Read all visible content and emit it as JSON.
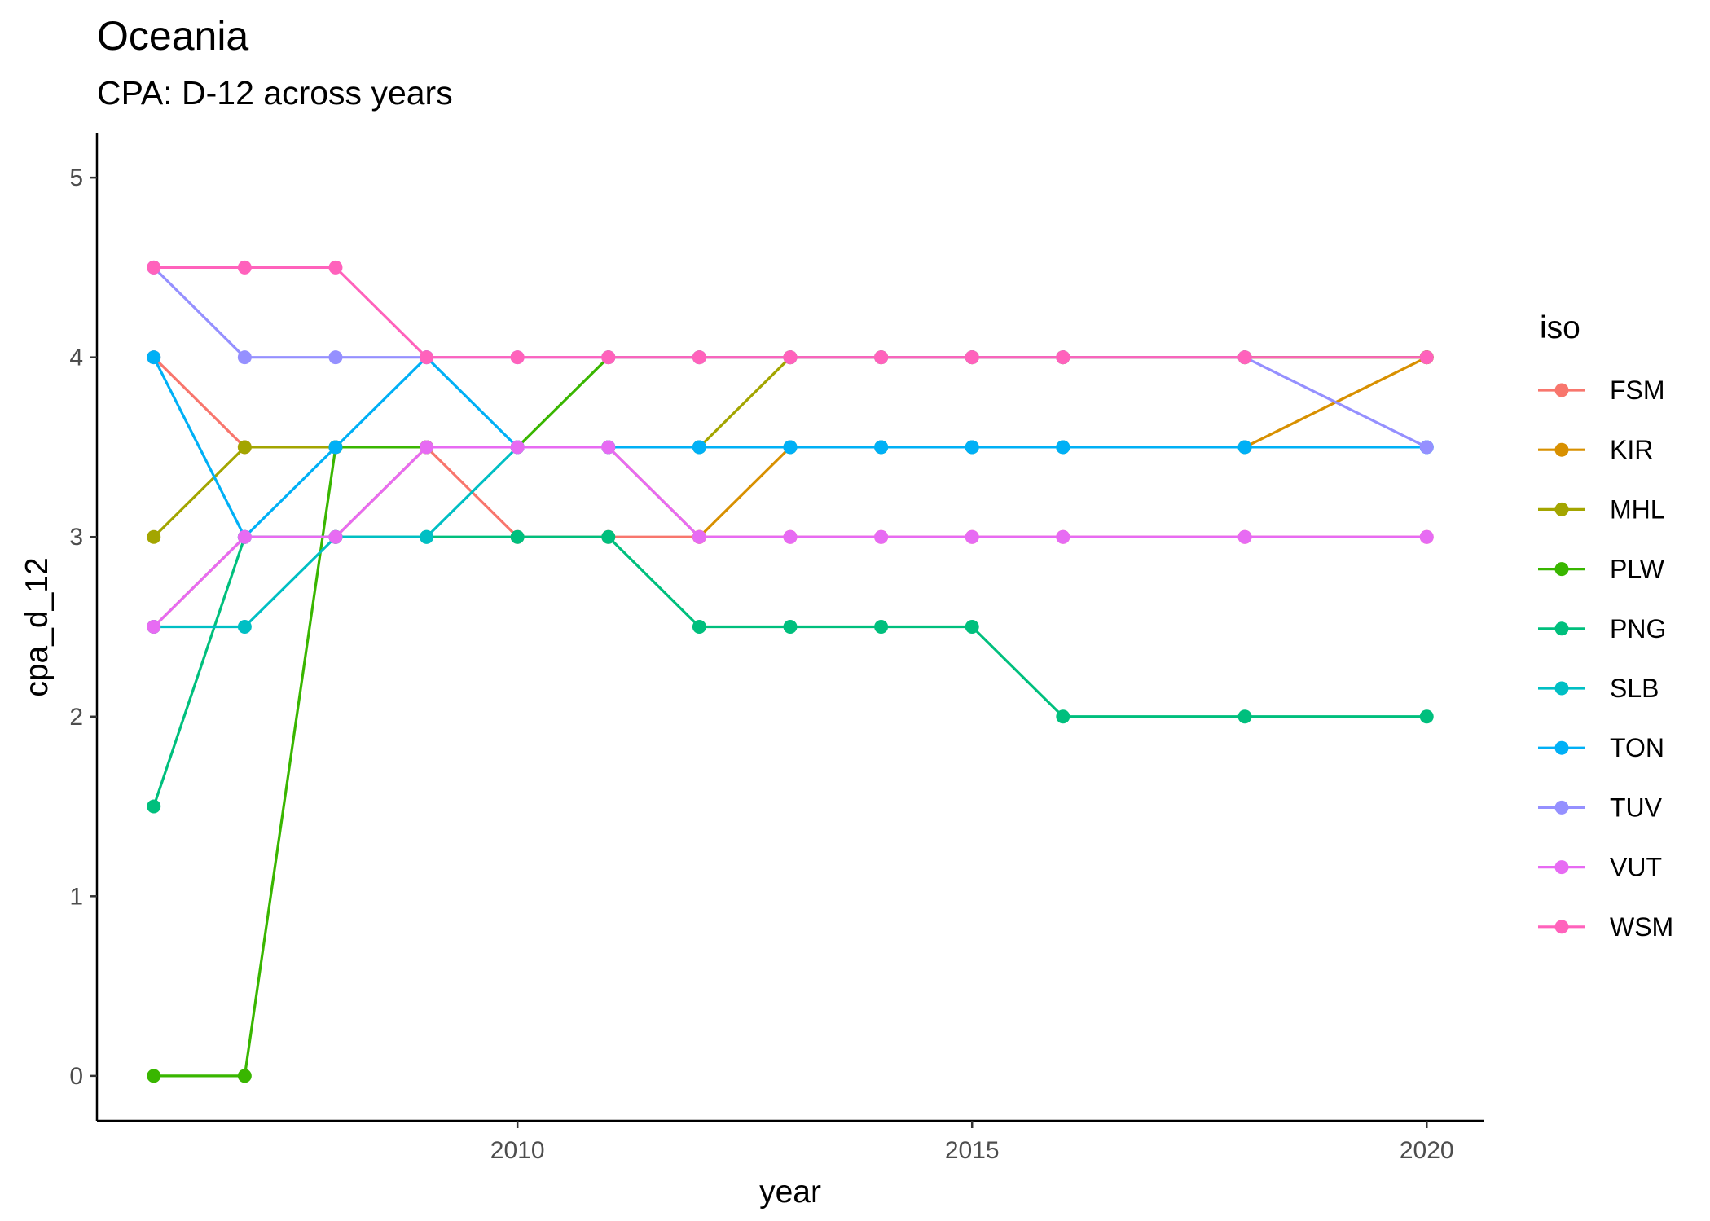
{
  "chart_data": {
    "type": "line",
    "title": "Oceania",
    "subtitle": "CPA: D-12 across years",
    "xlabel": "year",
    "ylabel": "cpa_d_12",
    "xlim": [
      2005.375,
      2020.625
    ],
    "ylim": [
      -0.25,
      5.25
    ],
    "x_ticks": [
      2010,
      2015,
      2020
    ],
    "y_ticks": [
      0,
      1,
      2,
      3,
      4,
      5
    ],
    "grid": false,
    "legend_title": "iso",
    "legend_position": "right",
    "x": [
      2006,
      2007,
      2008,
      2009,
      2010,
      2011,
      2012,
      2013,
      2014,
      2015,
      2016,
      2018,
      2020
    ],
    "series": [
      {
        "name": "FSM",
        "color": "#F8766D",
        "values": [
          4,
          3.5,
          3.5,
          3.5,
          3,
          3,
          3,
          3,
          3,
          3,
          3,
          3,
          3
        ]
      },
      {
        "name": "KIR",
        "color": "#D89000",
        "values": [
          2.5,
          3,
          3,
          3.5,
          3.5,
          3.5,
          3,
          3.5,
          3.5,
          3.5,
          3.5,
          3.5,
          4
        ]
      },
      {
        "name": "MHL",
        "color": "#A3A500",
        "values": [
          3,
          3.5,
          3.5,
          3.5,
          3.5,
          3.5,
          3.5,
          4,
          4,
          4,
          4,
          4,
          4
        ]
      },
      {
        "name": "PLW",
        "color": "#39B600",
        "values": [
          0,
          0,
          3.5,
          3.5,
          3.5,
          4,
          4,
          4,
          4,
          4,
          4,
          4,
          4
        ]
      },
      {
        "name": "PNG",
        "color": "#00BF7D",
        "values": [
          1.5,
          3,
          3,
          3,
          3,
          3,
          2.5,
          2.5,
          2.5,
          2.5,
          2,
          2,
          2
        ]
      },
      {
        "name": "SLB",
        "color": "#00BFC4",
        "values": [
          2.5,
          2.5,
          3,
          3,
          3.5,
          3.5,
          3.5,
          3.5,
          3.5,
          3.5,
          3.5,
          3.5,
          3.5
        ]
      },
      {
        "name": "TON",
        "color": "#00B0F6",
        "values": [
          4,
          3,
          3.5,
          4,
          3.5,
          3.5,
          3.5,
          3.5,
          3.5,
          3.5,
          3.5,
          3.5,
          3.5
        ]
      },
      {
        "name": "TUV",
        "color": "#9590FF",
        "values": [
          4.5,
          4,
          4,
          4,
          4,
          4,
          4,
          4,
          4,
          4,
          4,
          4,
          3.5
        ]
      },
      {
        "name": "VUT",
        "color": "#E76BF3",
        "values": [
          2.5,
          3,
          3,
          3.5,
          3.5,
          3.5,
          3,
          3,
          3,
          3,
          3,
          3,
          3
        ]
      },
      {
        "name": "WSM",
        "color": "#FF62BC",
        "values": [
          4.5,
          4.5,
          4.5,
          4,
          4,
          4,
          4,
          4,
          4,
          4,
          4,
          4,
          4
        ]
      }
    ]
  }
}
